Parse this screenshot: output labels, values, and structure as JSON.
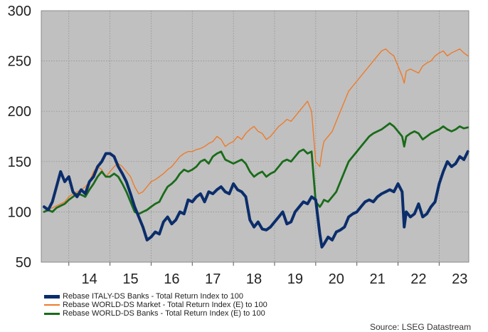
{
  "chart_data": {
    "type": "line",
    "ylim": [
      50,
      300
    ],
    "yticks": [
      50,
      100,
      150,
      200,
      250,
      300
    ],
    "xticks": [
      "14",
      "15",
      "16",
      "17",
      "18",
      "19",
      "20",
      "21",
      "22",
      "23"
    ],
    "grid": true,
    "plot_background": "#c0c0c0",
    "legend_position": "bottom-left",
    "source": "Source: LSEG Datastream",
    "series": [
      {
        "name": "Rebase ITALY-DS Banks - Total Return Index to 100",
        "color": "#0b2d6b",
        "width": 4,
        "x": [
          2013.4,
          2013.5,
          2013.6,
          2013.7,
          2013.8,
          2013.9,
          2014.0,
          2014.1,
          2014.2,
          2014.3,
          2014.4,
          2014.5,
          2014.6,
          2014.7,
          2014.8,
          2014.9,
          2015.0,
          2015.1,
          2015.2,
          2015.3,
          2015.4,
          2015.5,
          2015.6,
          2015.7,
          2015.8,
          2015.9,
          2016.0,
          2016.1,
          2016.2,
          2016.3,
          2016.4,
          2016.5,
          2016.6,
          2016.7,
          2016.8,
          2016.9,
          2017.0,
          2017.1,
          2017.2,
          2017.3,
          2017.4,
          2017.5,
          2017.6,
          2017.7,
          2017.8,
          2017.9,
          2018.0,
          2018.1,
          2018.2,
          2018.3,
          2018.4,
          2018.5,
          2018.6,
          2018.7,
          2018.8,
          2018.9,
          2019.0,
          2019.1,
          2019.2,
          2019.3,
          2019.4,
          2019.5,
          2019.6,
          2019.7,
          2019.8,
          2019.9,
          2020.0,
          2020.1,
          2020.15,
          2020.2,
          2020.3,
          2020.4,
          2020.5,
          2020.6,
          2020.7,
          2020.8,
          2020.9,
          2021.0,
          2021.1,
          2021.2,
          2021.3,
          2021.4,
          2021.5,
          2021.6,
          2021.7,
          2021.8,
          2021.9,
          2022.0,
          2022.1,
          2022.15,
          2022.2,
          2022.3,
          2022.4,
          2022.5,
          2022.6,
          2022.7,
          2022.8,
          2022.9,
          2023.0,
          2023.1,
          2023.2,
          2023.3,
          2023.4,
          2023.5,
          2023.6,
          2023.7
        ],
        "y": [
          105,
          102,
          110,
          125,
          140,
          130,
          135,
          120,
          115,
          122,
          118,
          130,
          135,
          145,
          150,
          158,
          158,
          155,
          145,
          138,
          130,
          118,
          105,
          95,
          85,
          72,
          75,
          80,
          78,
          90,
          95,
          88,
          92,
          100,
          98,
          112,
          110,
          115,
          118,
          110,
          120,
          118,
          122,
          125,
          120,
          118,
          128,
          122,
          120,
          115,
          92,
          85,
          90,
          83,
          82,
          85,
          90,
          95,
          100,
          88,
          90,
          100,
          105,
          110,
          108,
          115,
          112,
          78,
          65,
          68,
          75,
          72,
          80,
          82,
          85,
          95,
          98,
          100,
          105,
          110,
          112,
          110,
          115,
          118,
          120,
          122,
          120,
          128,
          120,
          85,
          100,
          95,
          98,
          108,
          95,
          98,
          105,
          110,
          128,
          140,
          150,
          145,
          148,
          155,
          152,
          160
        ]
      },
      {
        "name": "Rebase WORLD-DS Market - Total Return Index (E) to 100",
        "color": "#ee7b2a",
        "width": 1.4,
        "x": [
          2013.4,
          2013.5,
          2013.6,
          2013.7,
          2013.8,
          2013.9,
          2014.0,
          2014.1,
          2014.2,
          2014.3,
          2014.4,
          2014.5,
          2014.6,
          2014.7,
          2014.8,
          2014.9,
          2015.0,
          2015.1,
          2015.2,
          2015.3,
          2015.4,
          2015.5,
          2015.6,
          2015.7,
          2015.8,
          2015.9,
          2016.0,
          2016.1,
          2016.2,
          2016.3,
          2016.4,
          2016.5,
          2016.6,
          2016.7,
          2016.8,
          2016.9,
          2017.0,
          2017.1,
          2017.2,
          2017.3,
          2017.4,
          2017.5,
          2017.6,
          2017.7,
          2017.8,
          2017.9,
          2018.0,
          2018.1,
          2018.2,
          2018.3,
          2018.4,
          2018.5,
          2018.6,
          2018.7,
          2018.8,
          2018.9,
          2019.0,
          2019.1,
          2019.2,
          2019.3,
          2019.4,
          2019.5,
          2019.6,
          2019.7,
          2019.8,
          2019.9,
          2020.0,
          2020.1,
          2020.15,
          2020.2,
          2020.3,
          2020.4,
          2020.5,
          2020.6,
          2020.7,
          2020.8,
          2020.9,
          2021.0,
          2021.1,
          2021.2,
          2021.3,
          2021.4,
          2021.5,
          2021.6,
          2021.7,
          2021.8,
          2021.9,
          2022.0,
          2022.1,
          2022.15,
          2022.2,
          2022.3,
          2022.4,
          2022.5,
          2022.6,
          2022.7,
          2022.8,
          2022.9,
          2023.0,
          2023.1,
          2023.2,
          2023.3,
          2023.4,
          2023.5,
          2023.6,
          2023.7
        ],
        "y": [
          100,
          103,
          104,
          106,
          108,
          110,
          115,
          118,
          120,
          122,
          125,
          130,
          140,
          145,
          142,
          135,
          140,
          145,
          148,
          145,
          140,
          135,
          125,
          118,
          120,
          125,
          130,
          132,
          135,
          138,
          142,
          145,
          150,
          155,
          158,
          160,
          160,
          162,
          163,
          165,
          168,
          170,
          175,
          172,
          165,
          168,
          170,
          175,
          172,
          178,
          182,
          185,
          180,
          178,
          172,
          175,
          180,
          185,
          188,
          192,
          190,
          195,
          200,
          205,
          210,
          200,
          150,
          145,
          160,
          170,
          175,
          180,
          190,
          200,
          210,
          220,
          225,
          230,
          235,
          240,
          245,
          250,
          255,
          260,
          262,
          258,
          255,
          245,
          235,
          228,
          240,
          242,
          240,
          238,
          245,
          248,
          250,
          255,
          258,
          260,
          255,
          258,
          260,
          262,
          258,
          255
        ]
      },
      {
        "name": "Rebase WORLD-DS Banks - Total Return Index (E) to 100",
        "color": "#1a6b1a",
        "width": 2.8,
        "x": [
          2013.4,
          2013.5,
          2013.6,
          2013.7,
          2013.8,
          2013.9,
          2014.0,
          2014.1,
          2014.2,
          2014.3,
          2014.4,
          2014.5,
          2014.6,
          2014.7,
          2014.8,
          2014.9,
          2015.0,
          2015.1,
          2015.2,
          2015.3,
          2015.4,
          2015.5,
          2015.6,
          2015.7,
          2015.8,
          2015.9,
          2016.0,
          2016.1,
          2016.2,
          2016.3,
          2016.4,
          2016.5,
          2016.6,
          2016.7,
          2016.8,
          2016.9,
          2017.0,
          2017.1,
          2017.2,
          2017.3,
          2017.4,
          2017.5,
          2017.6,
          2017.7,
          2017.8,
          2017.9,
          2018.0,
          2018.1,
          2018.2,
          2018.3,
          2018.4,
          2018.5,
          2018.6,
          2018.7,
          2018.8,
          2018.9,
          2019.0,
          2019.1,
          2019.2,
          2019.3,
          2019.4,
          2019.5,
          2019.6,
          2019.7,
          2019.8,
          2019.9,
          2020.0,
          2020.1,
          2020.15,
          2020.2,
          2020.3,
          2020.4,
          2020.5,
          2020.6,
          2020.7,
          2020.8,
          2020.9,
          2021.0,
          2021.1,
          2021.2,
          2021.3,
          2021.4,
          2021.5,
          2021.6,
          2021.7,
          2021.8,
          2021.9,
          2022.0,
          2022.1,
          2022.15,
          2022.2,
          2022.3,
          2022.4,
          2022.5,
          2022.6,
          2022.7,
          2022.8,
          2022.9,
          2023.0,
          2023.1,
          2023.2,
          2023.3,
          2023.4,
          2023.5,
          2023.6,
          2023.7
        ],
        "y": [
          100,
          102,
          100,
          104,
          106,
          108,
          112,
          115,
          118,
          117,
          115,
          122,
          128,
          135,
          140,
          135,
          135,
          138,
          135,
          128,
          120,
          110,
          100,
          98,
          100,
          102,
          105,
          108,
          110,
          118,
          125,
          128,
          132,
          138,
          142,
          140,
          142,
          145,
          150,
          152,
          148,
          155,
          158,
          160,
          152,
          150,
          148,
          150,
          152,
          148,
          140,
          135,
          138,
          140,
          135,
          138,
          140,
          145,
          150,
          152,
          150,
          155,
          160,
          162,
          158,
          160,
          110,
          105,
          108,
          112,
          110,
          115,
          120,
          130,
          140,
          150,
          155,
          160,
          165,
          170,
          175,
          178,
          180,
          182,
          185,
          188,
          185,
          180,
          175,
          165,
          175,
          178,
          180,
          178,
          172,
          175,
          178,
          180,
          182,
          185,
          182,
          180,
          182,
          185,
          183,
          184
        ]
      }
    ]
  }
}
